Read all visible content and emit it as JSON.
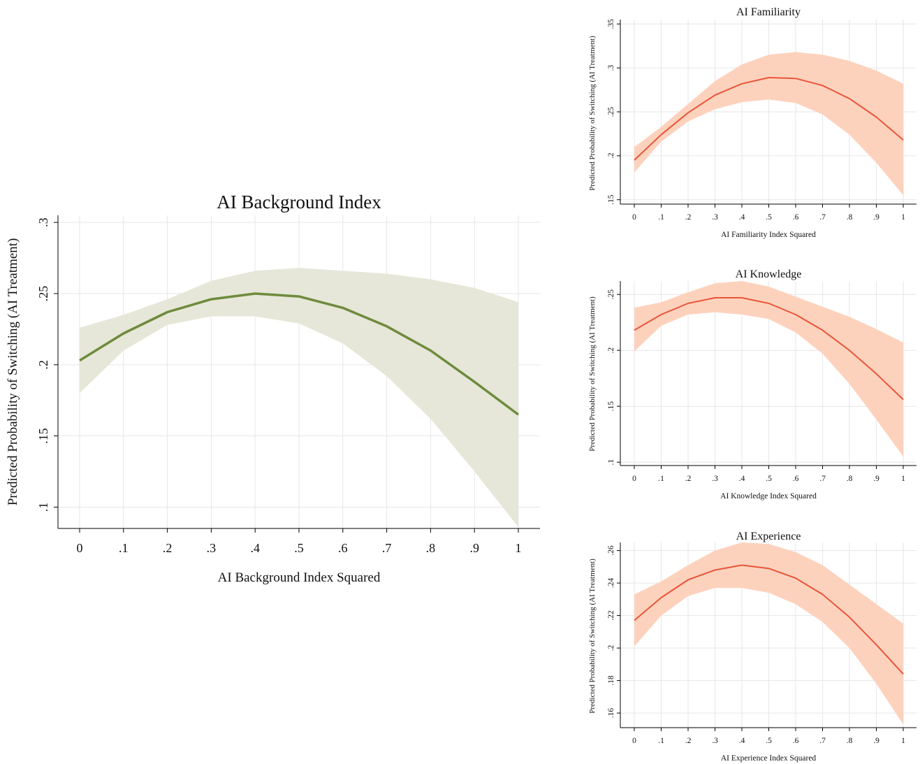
{
  "colors": {
    "main_line": "#6e8b3d",
    "main_band": "#e6e7d8",
    "small_line": "#e8553a",
    "small_band": "#fdd2bd",
    "grid": "#e6e6e6",
    "text": "#111111"
  },
  "chart_data": [
    {
      "type": "line",
      "title": "AI Background Index",
      "xlabel": "AI Background Index Squared",
      "ylabel": "Predicted Probability of Switching (AI Treatment)",
      "x": [
        0,
        0.1,
        0.2,
        0.3,
        0.4,
        0.5,
        0.6,
        0.7,
        0.8,
        0.9,
        1
      ],
      "xticks": [
        "0",
        ".1",
        ".2",
        ".3",
        ".4",
        ".5",
        ".6",
        ".7",
        ".8",
        ".9",
        "1"
      ],
      "yticks": [
        0.1,
        0.15,
        0.2,
        0.25,
        0.3
      ],
      "ytick_labels": [
        ".1",
        ".15",
        ".2",
        ".25",
        ".3"
      ],
      "xlim": [
        0,
        1
      ],
      "ylim": [
        0.085,
        0.305
      ],
      "series": [
        {
          "values": [
            0.203,
            0.222,
            0.237,
            0.246,
            0.25,
            0.248,
            0.24,
            0.227,
            0.21,
            0.188,
            0.165
          ],
          "lower": [
            0.18,
            0.21,
            0.228,
            0.234,
            0.234,
            0.229,
            0.215,
            0.192,
            0.162,
            0.125,
            0.086
          ],
          "upper": [
            0.226,
            0.235,
            0.246,
            0.259,
            0.266,
            0.268,
            0.266,
            0.264,
            0.26,
            0.254,
            0.244
          ]
        }
      ],
      "confidence_band": true,
      "grid": true,
      "legend": "none"
    },
    {
      "type": "line",
      "title": "AI Familiarity",
      "xlabel": "AI Familiarity Index Squared",
      "ylabel": "Predicted Probability of Switching (AI Treatment)",
      "x": [
        0,
        0.1,
        0.2,
        0.3,
        0.4,
        0.5,
        0.6,
        0.7,
        0.8,
        0.9,
        1
      ],
      "xticks": [
        "0",
        ".1",
        ".2",
        ".3",
        ".4",
        ".5",
        ".6",
        ".7",
        ".8",
        ".9",
        "1"
      ],
      "yticks": [
        0.15,
        0.2,
        0.25,
        0.3,
        0.35
      ],
      "ytick_labels": [
        ".15",
        ".2",
        ".25",
        ".3",
        ".35"
      ],
      "xlim": [
        0,
        1
      ],
      "ylim": [
        0.145,
        0.355
      ],
      "series": [
        {
          "values": [
            0.195,
            0.224,
            0.249,
            0.269,
            0.282,
            0.289,
            0.288,
            0.28,
            0.265,
            0.244,
            0.218
          ],
          "lower": [
            0.181,
            0.216,
            0.239,
            0.253,
            0.261,
            0.264,
            0.26,
            0.247,
            0.224,
            0.192,
            0.155
          ],
          "upper": [
            0.21,
            0.233,
            0.259,
            0.285,
            0.304,
            0.315,
            0.318,
            0.315,
            0.308,
            0.297,
            0.282
          ]
        }
      ],
      "confidence_band": true,
      "grid": true,
      "legend": "none"
    },
    {
      "type": "line",
      "title": "AI Knowledge",
      "xlabel": "AI Knowledge Index Squared",
      "ylabel": "Predicted Probability of Switching (AI Treatment)",
      "x": [
        0,
        0.1,
        0.2,
        0.3,
        0.4,
        0.5,
        0.6,
        0.7,
        0.8,
        0.9,
        1
      ],
      "xticks": [
        "0",
        ".1",
        ".2",
        ".3",
        ".4",
        ".5",
        ".6",
        ".7",
        ".8",
        ".9",
        "1"
      ],
      "yticks": [
        0.1,
        0.15,
        0.2,
        0.25
      ],
      "ytick_labels": [
        ".1",
        ".15",
        ".2",
        ".25"
      ],
      "xlim": [
        0,
        1
      ],
      "ylim": [
        0.097,
        0.262
      ],
      "series": [
        {
          "values": [
            0.218,
            0.232,
            0.242,
            0.247,
            0.247,
            0.242,
            0.232,
            0.218,
            0.2,
            0.179,
            0.156
          ],
          "lower": [
            0.199,
            0.222,
            0.232,
            0.234,
            0.232,
            0.228,
            0.216,
            0.197,
            0.17,
            0.138,
            0.105
          ],
          "upper": [
            0.238,
            0.243,
            0.252,
            0.26,
            0.262,
            0.257,
            0.248,
            0.239,
            0.23,
            0.219,
            0.207
          ]
        }
      ],
      "confidence_band": true,
      "grid": true,
      "legend": "none"
    },
    {
      "type": "line",
      "title": "AI Experience",
      "xlabel": "AI Experience Index Squared",
      "ylabel": "Predicted Probability of Switching (AI Treatment)",
      "x": [
        0,
        0.1,
        0.2,
        0.3,
        0.4,
        0.5,
        0.6,
        0.7,
        0.8,
        0.9,
        1
      ],
      "xticks": [
        "0",
        ".1",
        ".2",
        ".3",
        ".4",
        ".5",
        ".6",
        ".7",
        ".8",
        ".9",
        "1"
      ],
      "yticks": [
        0.16,
        0.18,
        0.2,
        0.22,
        0.24,
        0.26
      ],
      "ytick_labels": [
        ".16",
        ".18",
        ".2",
        ".22",
        ".24",
        ".26"
      ],
      "xlim": [
        0,
        1
      ],
      "ylim": [
        0.151,
        0.265
      ],
      "series": [
        {
          "values": [
            0.217,
            0.231,
            0.242,
            0.248,
            0.251,
            0.249,
            0.243,
            0.233,
            0.219,
            0.202,
            0.184
          ],
          "lower": [
            0.201,
            0.22,
            0.232,
            0.237,
            0.237,
            0.234,
            0.227,
            0.216,
            0.2,
            0.178,
            0.153
          ],
          "upper": [
            0.233,
            0.241,
            0.251,
            0.26,
            0.265,
            0.264,
            0.259,
            0.251,
            0.239,
            0.227,
            0.215
          ]
        }
      ],
      "confidence_band": true,
      "grid": true,
      "legend": "none"
    }
  ]
}
